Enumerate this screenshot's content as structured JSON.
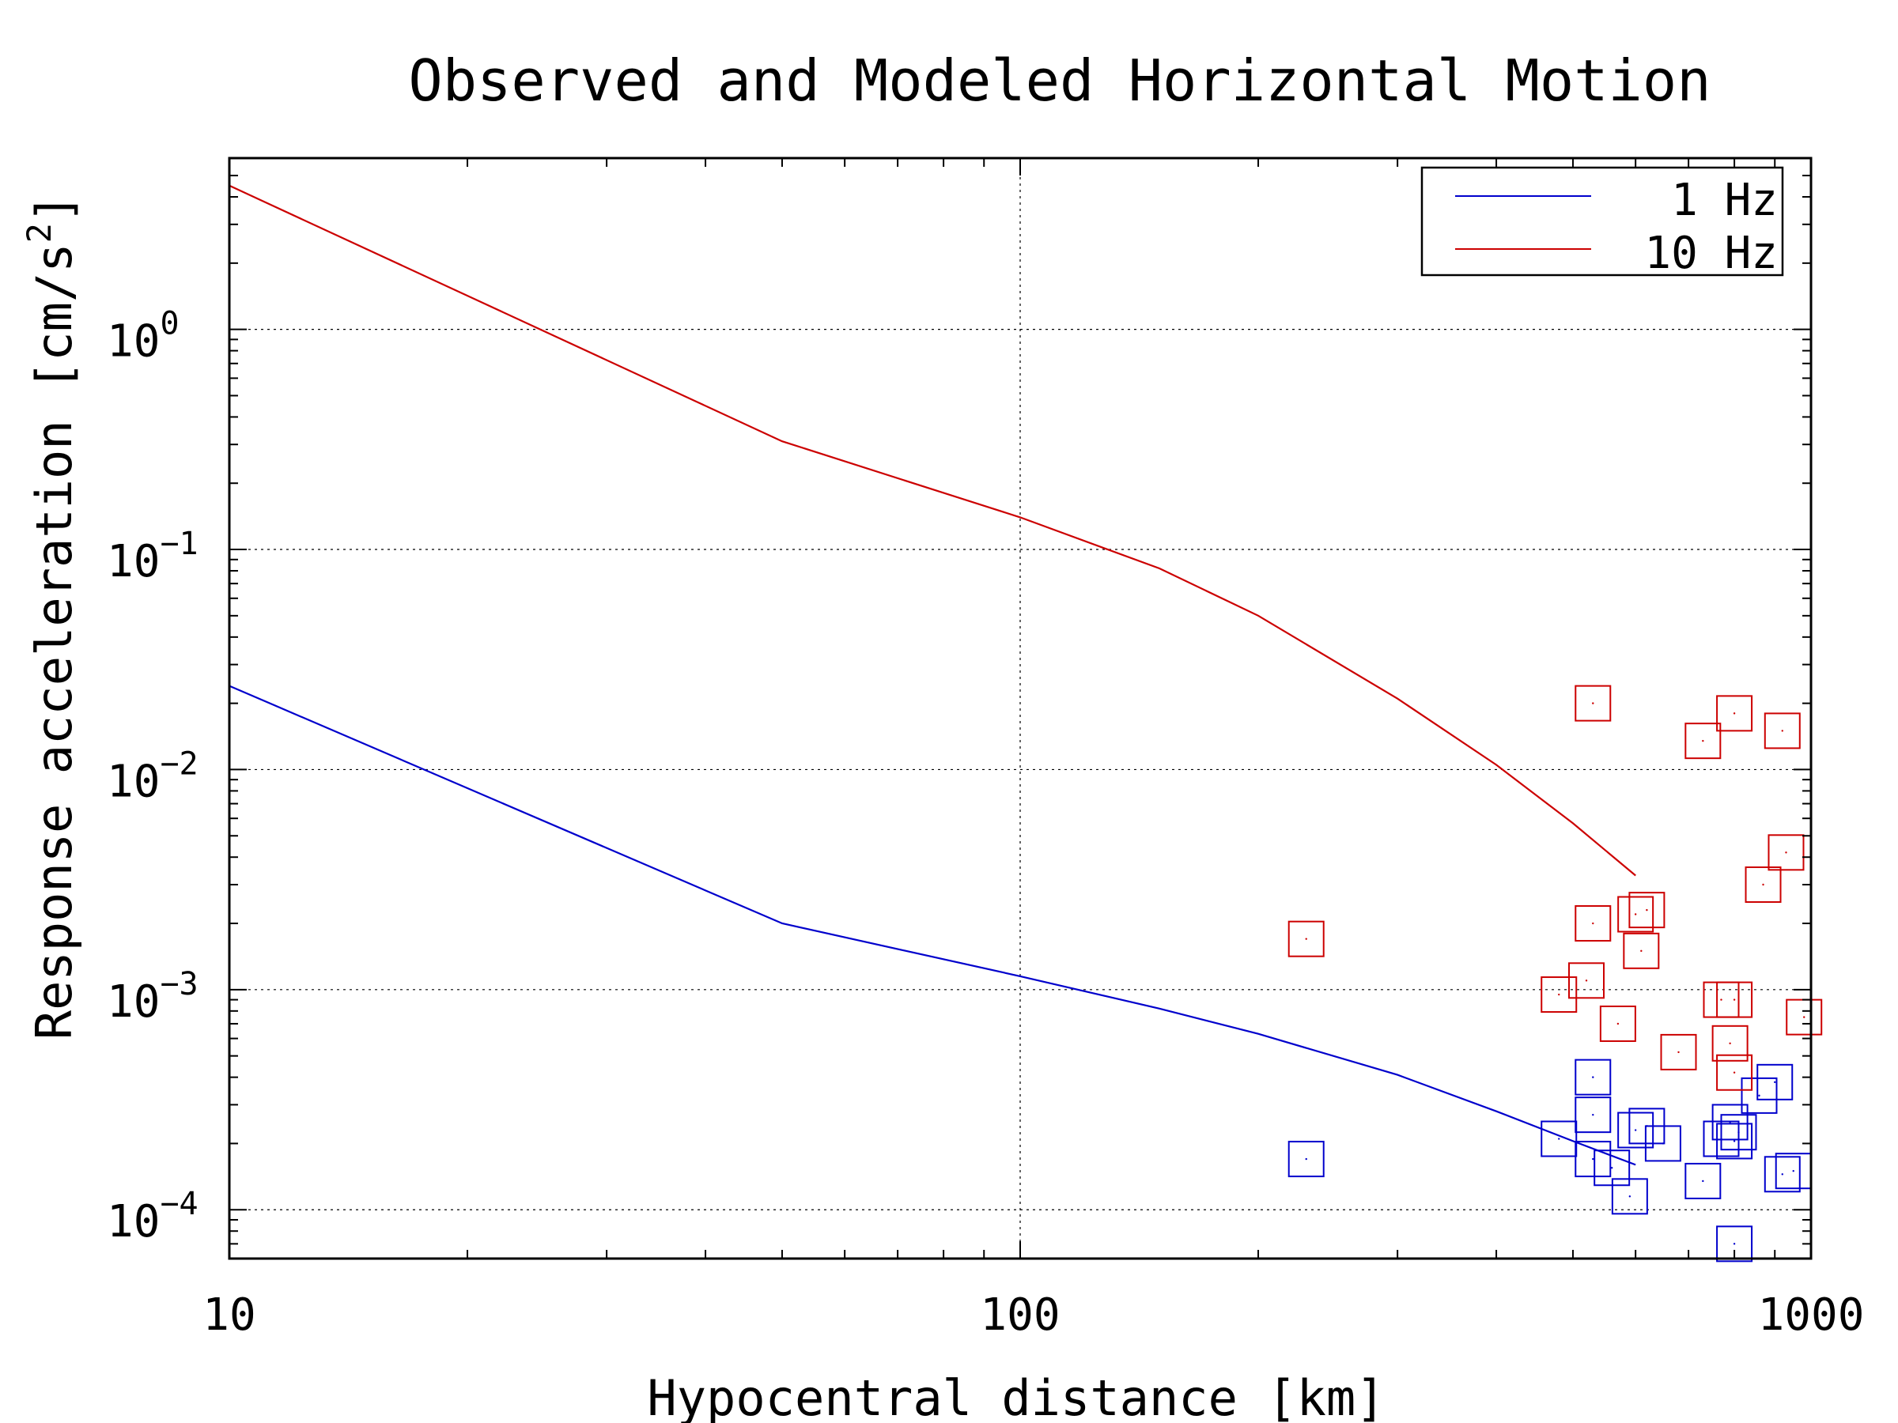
{
  "chart_data": {
    "type": "scatter",
    "title": "Observed and Modeled Horizontal Motion",
    "xlabel": "Hypocentral distance [km]",
    "ylabel": "Response acceleration [cm/s",
    "ylabel_sup": "2",
    "ylabel_close": "]",
    "x_scale": "log",
    "y_scale": "log",
    "xlim": [
      10,
      1000
    ],
    "ylim": [
      6e-05,
      6
    ],
    "grid": true,
    "legend_position": "top-right",
    "x_ticks": [
      {
        "value": 10,
        "label": "10"
      },
      {
        "value": 100,
        "label": "100"
      },
      {
        "value": 1000,
        "label": "1000"
      }
    ],
    "y_ticks": [
      {
        "value": 1,
        "base": "10",
        "exp": "0"
      },
      {
        "value": 0.1,
        "base": "10",
        "exp": "−1"
      },
      {
        "value": 0.01,
        "base": "10",
        "exp": "−2"
      },
      {
        "value": 0.001,
        "base": "10",
        "exp": "−3"
      },
      {
        "value": 0.0001,
        "base": "10",
        "exp": "−4"
      }
    ],
    "series": [
      {
        "name": "1 Hz",
        "color": "#0000cc",
        "line": [
          [
            10,
            0.024
          ],
          [
            50,
            0.002
          ],
          [
            100,
            0.00115
          ],
          [
            150,
            0.00082
          ],
          [
            200,
            0.00063
          ],
          [
            300,
            0.00041
          ],
          [
            400,
            0.00028
          ],
          [
            500,
            0.000205
          ],
          [
            600,
            0.00016
          ]
        ],
        "observed": [
          [
            230,
            0.00017
          ],
          [
            530,
            0.0004
          ],
          [
            530,
            0.00027
          ],
          [
            530,
            0.00017
          ],
          [
            480,
            0.00021
          ],
          [
            560,
            0.000155
          ],
          [
            590,
            0.000115
          ],
          [
            600,
            0.00023
          ],
          [
            620,
            0.00024
          ],
          [
            650,
            0.0002
          ],
          [
            730,
            0.000135
          ],
          [
            770,
            0.00021
          ],
          [
            790,
            0.00025
          ],
          [
            800,
            0.000205
          ],
          [
            810,
            0.000225
          ],
          [
            800,
            7e-05
          ],
          [
            860,
            0.00033
          ],
          [
            900,
            0.00038
          ],
          [
            920,
            0.000145
          ],
          [
            950,
            0.00015
          ]
        ]
      },
      {
        "name": "10 Hz",
        "color": "#cc0000",
        "line": [
          [
            10,
            4.5
          ],
          [
            50,
            0.31
          ],
          [
            100,
            0.14
          ],
          [
            150,
            0.082
          ],
          [
            200,
            0.05
          ],
          [
            300,
            0.021
          ],
          [
            400,
            0.0105
          ],
          [
            500,
            0.0057
          ],
          [
            600,
            0.0033
          ]
        ],
        "observed": [
          [
            230,
            0.0017
          ],
          [
            530,
            0.02
          ],
          [
            530,
            0.002
          ],
          [
            520,
            0.0011
          ],
          [
            480,
            0.00095
          ],
          [
            570,
            0.0007
          ],
          [
            600,
            0.0022
          ],
          [
            620,
            0.0023
          ],
          [
            610,
            0.0015
          ],
          [
            680,
            0.00052
          ],
          [
            730,
            0.0135
          ],
          [
            800,
            0.018
          ],
          [
            920,
            0.015
          ],
          [
            930,
            0.0042
          ],
          [
            870,
            0.003
          ],
          [
            770,
            0.0009
          ],
          [
            800,
            0.0009
          ],
          [
            790,
            0.00057
          ],
          [
            800,
            0.00042
          ],
          [
            980,
            0.00075
          ]
        ]
      }
    ]
  }
}
